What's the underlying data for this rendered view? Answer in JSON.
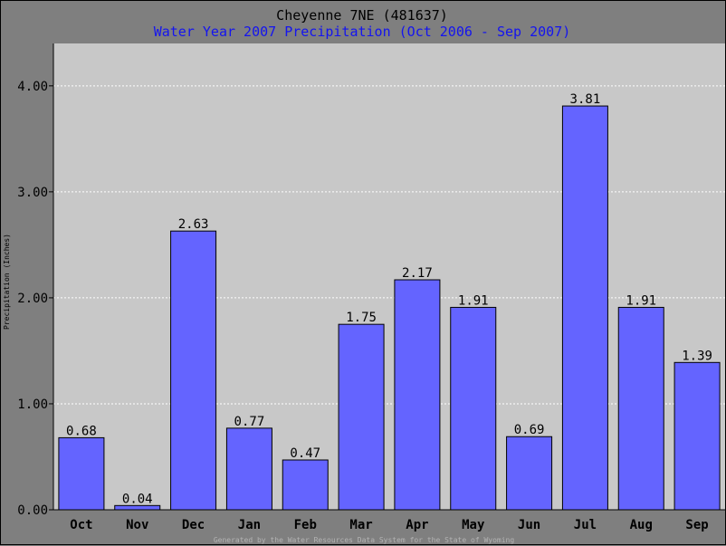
{
  "colors": {
    "frame": "#7f7f7f",
    "plot_bg": "#c8c8c8",
    "bar": "#6464ff",
    "title": "#000000",
    "subtitle": "#1414f0",
    "grid": "#ffffff",
    "footer": "#b4b4b4"
  },
  "footer": "Generated by the Water Resources Data System for the State of Wyoming",
  "chart_data": {
    "type": "bar",
    "title": "Cheyenne 7NE (481637)",
    "subtitle": "Water Year 2007 Precipitation (Oct 2006 - Sep 2007)",
    "xlabel": "",
    "ylabel": "Precipitation (Inches)",
    "categories": [
      "Oct",
      "Nov",
      "Dec",
      "Jan",
      "Feb",
      "Mar",
      "Apr",
      "May",
      "Jun",
      "Jul",
      "Aug",
      "Sep"
    ],
    "values": [
      0.68,
      0.04,
      2.63,
      0.77,
      0.47,
      1.75,
      2.17,
      1.91,
      0.69,
      3.81,
      1.91,
      1.39
    ],
    "value_labels": [
      "0.68",
      "0.04",
      "2.63",
      "0.77",
      "0.47",
      "1.75",
      "2.17",
      "1.91",
      "0.69",
      "3.81",
      "1.91",
      "1.39"
    ],
    "yticks": [
      0,
      1,
      2,
      3,
      4
    ],
    "ytick_labels": [
      "0.00",
      "1.00",
      "2.00",
      "3.00",
      "4.00"
    ],
    "ylim": [
      0,
      4.4
    ],
    "grid": "horizontal dashed",
    "legend": "none"
  }
}
